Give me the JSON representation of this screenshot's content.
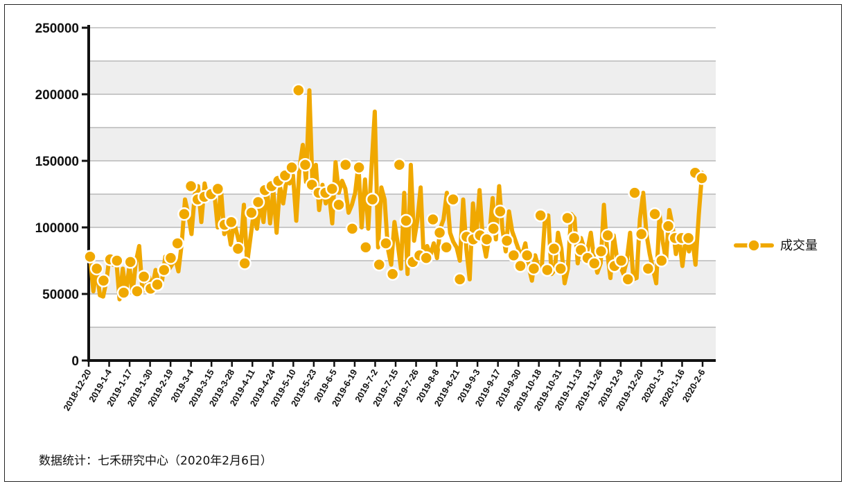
{
  "chart_data": {
    "type": "line",
    "title": "",
    "xlabel": "",
    "ylabel": "",
    "ylim": [
      0,
      250000
    ],
    "yticks": [
      0,
      50000,
      100000,
      150000,
      200000,
      250000
    ],
    "ytick_labels": [
      "0",
      "50000",
      "100000",
      "150000",
      "200000",
      "250000"
    ],
    "x_tick_labels": [
      "2018-12-20",
      "2019-1-4",
      "2019-1-17",
      "2019-1-30",
      "2019-2-19",
      "2019-3-4",
      "2019-3-15",
      "2019-3-28",
      "2019-4-11",
      "2019-4-24",
      "2019-5-10",
      "2019-5-23",
      "2019-6-5",
      "2019-6-19",
      "2019-7-2",
      "2019-7-15",
      "2019-7-26",
      "2019-8-8",
      "2019-8-21",
      "2019-9-3",
      "2019-9-17",
      "2019-9-30",
      "2019-10-18",
      "2019-10-31",
      "2019-11-13",
      "2019-11-26",
      "2019-12-9",
      "2019-12-20",
      "2020-1-3",
      "2020-1-16",
      "2020-2-6"
    ],
    "grid": true,
    "legend_position": "right",
    "series": [
      {
        "name": "成交量",
        "color": "#F0A800",
        "marker_values": [
          78000,
          69000,
          60000,
          76000,
          75000,
          51000,
          74000,
          52000,
          63000,
          54000,
          57000,
          68000,
          77000,
          88000,
          110000,
          131000,
          121000,
          123000,
          125000,
          129000,
          102000,
          104000,
          84000,
          73000,
          111000,
          119000,
          128000,
          131000,
          135000,
          139000,
          145000,
          203000,
          147000,
          132000,
          126000,
          126000,
          129000,
          117000,
          147000,
          99000,
          145000,
          85000,
          121000,
          72000,
          88000,
          65000,
          147000,
          105000,
          74000,
          79000,
          77000,
          106000,
          96000,
          85000,
          121000,
          61000,
          93000,
          91000,
          94000,
          91000,
          99000,
          112000,
          90000,
          79000,
          71000,
          79000,
          69000,
          109000,
          68000,
          84000,
          69000,
          107000,
          92000,
          83000,
          77000,
          73000,
          82000,
          94000,
          71000,
          75000,
          61000,
          126000,
          95000,
          69000,
          110000,
          75000,
          101000,
          92000,
          92000,
          92000,
          141000,
          137000
        ],
        "values": [
          78000,
          52000,
          69000,
          49000,
          48000,
          60000,
          79000,
          72000,
          76000,
          46000,
          69000,
          51000,
          71000,
          51000,
          74000,
          86000,
          52000,
          55000,
          63000,
          54000,
          68000,
          57000,
          60000,
          78000,
          68000,
          72000,
          77000,
          67000,
          88000,
          121000,
          110000,
          95000,
          125000,
          131000,
          104000,
          133000,
          121000,
          126000,
          125000,
          100000,
          129000,
          95000,
          102000,
          87000,
          104000,
          94000,
          84000,
          117000,
          73000,
          92000,
          111000,
          99000,
          119000,
          104000,
          131000,
          103000,
          128000,
          96000,
          131000,
          118000,
          135000,
          133000,
          139000,
          105000,
          145000,
          162000,
          134000,
          203000,
          128000,
          147000,
          113000,
          132000,
          118000,
          126000,
          103000,
          149000,
          126000,
          135000,
          129000,
          111000,
          117000,
          126000,
          147000,
          100000,
          136000,
          99000,
          145000,
          187000,
          85000,
          130000,
          121000,
          84000,
          72000,
          104000,
          88000,
          69000,
          126000,
          65000,
          147000,
          90000,
          105000,
          130000,
          74000,
          86000,
          79000,
          88000,
          77000,
          99000,
          106000,
          126000,
          96000,
          89000,
          85000,
          75000,
          121000,
          83000,
          61000,
          118000,
          93000,
          128000,
          91000,
          78000,
          94000,
          122000,
          91000,
          131000,
          99000,
          82000,
          112000,
          97000,
          90000,
          83000,
          79000,
          88000,
          71000,
          60000,
          79000,
          70000,
          69000,
          107000,
          109000,
          65000,
          68000,
          96000,
          84000,
          58000,
          69000,
          110000,
          107000,
          73000,
          92000,
          84000,
          83000,
          96000,
          77000,
          66000,
          73000,
          117000,
          82000,
          62000,
          94000,
          77000,
          71000,
          65000,
          75000,
          96000,
          61000,
          62000,
          106000,
          126000,
          95000,
          80000,
          69000,
          58000,
          110000,
          89000,
          75000,
          113000,
          101000,
          80000,
          92000,
          71000,
          92000,
          82000,
          92000,
          72000,
          110000,
          141000,
          137000
        ]
      }
    ]
  },
  "source_note": "数据统计：七禾研究中心（2020年2月6日）"
}
